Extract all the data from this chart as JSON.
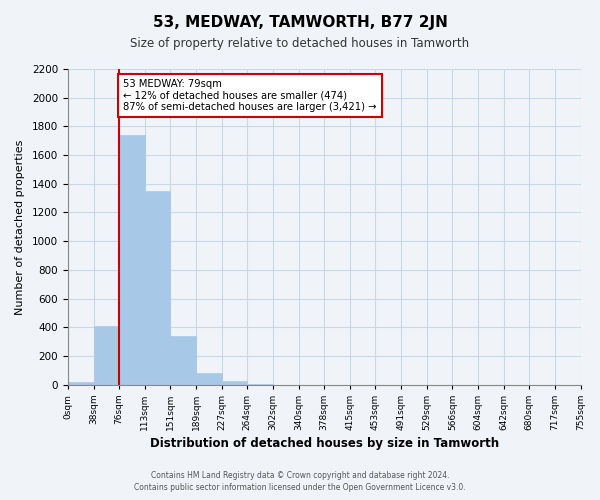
{
  "title": "53, MEDWAY, TAMWORTH, B77 2JN",
  "subtitle": "Size of property relative to detached houses in Tamworth",
  "xlabel": "Distribution of detached houses by size in Tamworth",
  "ylabel": "Number of detached properties",
  "bin_edges": [
    "0sqm",
    "38sqm",
    "76sqm",
    "113sqm",
    "151sqm",
    "189sqm",
    "227sqm",
    "264sqm",
    "302sqm",
    "340sqm",
    "378sqm",
    "415sqm",
    "453sqm",
    "491sqm",
    "529sqm",
    "566sqm",
    "604sqm",
    "642sqm",
    "680sqm",
    "717sqm",
    "755sqm"
  ],
  "bar_values": [
    20,
    410,
    1740,
    1350,
    340,
    80,
    25,
    5,
    0,
    0,
    0,
    0,
    0,
    0,
    0,
    0,
    0,
    0,
    0,
    0
  ],
  "bar_color": "#a8c8e8",
  "annotation_title": "53 MEDWAY: 79sqm",
  "annotation_line1": "← 12% of detached houses are smaller (474)",
  "annotation_line2": "87% of semi-detached houses are larger (3,421) →",
  "vline_color": "#cc0000",
  "annotation_box_color": "#ffffff",
  "annotation_box_edge": "#cc0000",
  "grid_color": "#c8d8e8",
  "background_color": "#f0f4f8",
  "ylim": [
    0,
    2200
  ],
  "yticks": [
    0,
    200,
    400,
    600,
    800,
    1000,
    1200,
    1400,
    1600,
    1800,
    2000,
    2200
  ],
  "footer_line1": "Contains HM Land Registry data © Crown copyright and database right 2024.",
  "footer_line2": "Contains public sector information licensed under the Open Government Licence v3.0."
}
